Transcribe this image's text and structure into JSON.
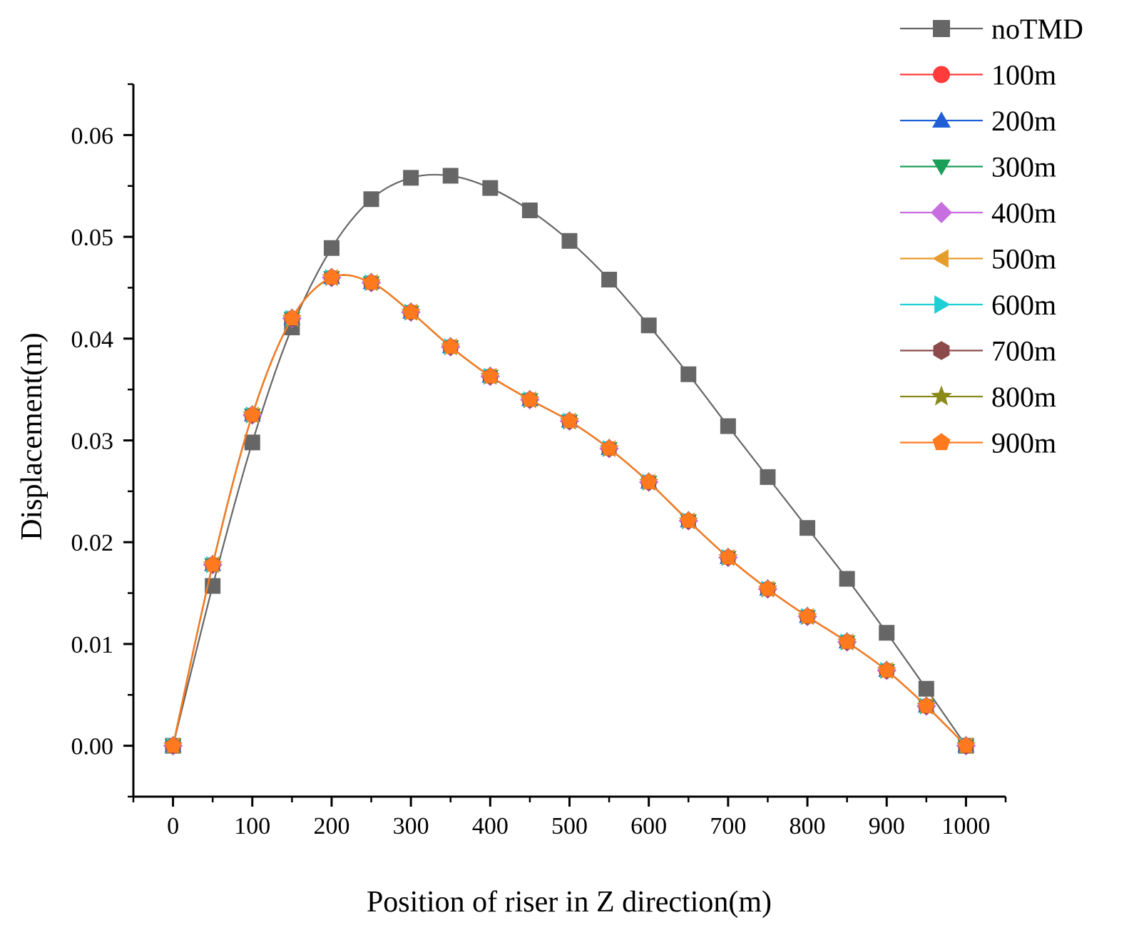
{
  "chart_data": {
    "type": "line",
    "title": "",
    "xlabel": "Position of riser in Z direction(m)",
    "ylabel": "Displacement(m)",
    "xlim": [
      -50,
      1050
    ],
    "ylim": [
      -0.005,
      0.065
    ],
    "xticks": [
      0,
      100,
      200,
      300,
      400,
      500,
      600,
      700,
      800,
      900,
      1000
    ],
    "xtick_labels": [
      "0",
      "100",
      "200",
      "300",
      "400",
      "500",
      "600",
      "700",
      "800",
      "900",
      "1000"
    ],
    "yticks": [
      0.0,
      0.01,
      0.02,
      0.03,
      0.04,
      0.05,
      0.06
    ],
    "ytick_labels": [
      "0.00",
      "0.01",
      "0.02",
      "0.03",
      "0.04",
      "0.05",
      "0.06"
    ],
    "grid": false,
    "legend_position": "top-right outside",
    "x": [
      0,
      50,
      100,
      150,
      200,
      250,
      300,
      350,
      400,
      450,
      500,
      550,
      600,
      650,
      700,
      750,
      800,
      850,
      900,
      950,
      1000
    ],
    "series": [
      {
        "name": "noTMD",
        "color": "#666666",
        "marker": "square",
        "values": [
          0,
          0.0157,
          0.0298,
          0.0411,
          0.0489,
          0.0537,
          0.0558,
          0.056,
          0.0548,
          0.0526,
          0.0496,
          0.0458,
          0.0413,
          0.0365,
          0.0314,
          0.0264,
          0.0214,
          0.0164,
          0.0111,
          0.0056,
          0
        ]
      },
      {
        "name": "100m",
        "color": "#ff3b3b",
        "marker": "circle",
        "values": [
          0,
          0.0178,
          0.0325,
          0.042,
          0.046,
          0.0455,
          0.0426,
          0.0392,
          0.0363,
          0.034,
          0.0319,
          0.0292,
          0.0259,
          0.0221,
          0.0185,
          0.0154,
          0.0127,
          0.0102,
          0.0074,
          0.0039,
          0
        ]
      },
      {
        "name": "200m",
        "color": "#1f5fd6",
        "marker": "triangle-up",
        "values": [
          0,
          0.0178,
          0.0325,
          0.042,
          0.046,
          0.0455,
          0.0426,
          0.0392,
          0.0363,
          0.034,
          0.0319,
          0.0292,
          0.0259,
          0.0221,
          0.0185,
          0.0154,
          0.0127,
          0.0102,
          0.0074,
          0.0039,
          0
        ]
      },
      {
        "name": "300m",
        "color": "#1a9e5a",
        "marker": "triangle-down",
        "values": [
          0,
          0.0178,
          0.0325,
          0.042,
          0.046,
          0.0455,
          0.0426,
          0.0392,
          0.0363,
          0.034,
          0.0319,
          0.0292,
          0.0259,
          0.0221,
          0.0185,
          0.0154,
          0.0127,
          0.0102,
          0.0074,
          0.0039,
          0
        ]
      },
      {
        "name": "400m",
        "color": "#c86ee0",
        "marker": "diamond",
        "values": [
          0,
          0.0178,
          0.0325,
          0.042,
          0.046,
          0.0455,
          0.0426,
          0.0392,
          0.0363,
          0.034,
          0.0319,
          0.0292,
          0.0259,
          0.0221,
          0.0185,
          0.0154,
          0.0127,
          0.0102,
          0.0074,
          0.0039,
          0
        ]
      },
      {
        "name": "500m",
        "color": "#e69c2a",
        "marker": "triangle-left",
        "values": [
          0,
          0.0178,
          0.0325,
          0.042,
          0.046,
          0.0455,
          0.0426,
          0.0392,
          0.0363,
          0.034,
          0.0319,
          0.0292,
          0.0259,
          0.0221,
          0.0185,
          0.0154,
          0.0127,
          0.0102,
          0.0074,
          0.0039,
          0
        ]
      },
      {
        "name": "600m",
        "color": "#1fcfd6",
        "marker": "triangle-right",
        "values": [
          0,
          0.0178,
          0.0325,
          0.042,
          0.046,
          0.0455,
          0.0426,
          0.0392,
          0.0363,
          0.034,
          0.0319,
          0.0292,
          0.0259,
          0.0221,
          0.0185,
          0.0154,
          0.0127,
          0.0102,
          0.0074,
          0.0039,
          0
        ]
      },
      {
        "name": "700m",
        "color": "#8c4a4a",
        "marker": "hexagon",
        "values": [
          0,
          0.0178,
          0.0325,
          0.042,
          0.046,
          0.0455,
          0.0426,
          0.0392,
          0.0363,
          0.034,
          0.0319,
          0.0292,
          0.0259,
          0.0221,
          0.0185,
          0.0154,
          0.0127,
          0.0102,
          0.0074,
          0.0039,
          0
        ]
      },
      {
        "name": "800m",
        "color": "#8a8a1a",
        "marker": "star",
        "values": [
          0,
          0.0178,
          0.0325,
          0.042,
          0.046,
          0.0455,
          0.0426,
          0.0392,
          0.0363,
          0.034,
          0.0319,
          0.0292,
          0.0259,
          0.0221,
          0.0185,
          0.0154,
          0.0127,
          0.0102,
          0.0074,
          0.0039,
          0
        ]
      },
      {
        "name": "900m",
        "color": "#ff7a1f",
        "marker": "pentagon",
        "values": [
          0,
          0.0178,
          0.0325,
          0.042,
          0.046,
          0.0455,
          0.0426,
          0.0392,
          0.0363,
          0.034,
          0.0319,
          0.0292,
          0.0259,
          0.0221,
          0.0185,
          0.0154,
          0.0127,
          0.0102,
          0.0074,
          0.0039,
          0
        ]
      }
    ]
  }
}
